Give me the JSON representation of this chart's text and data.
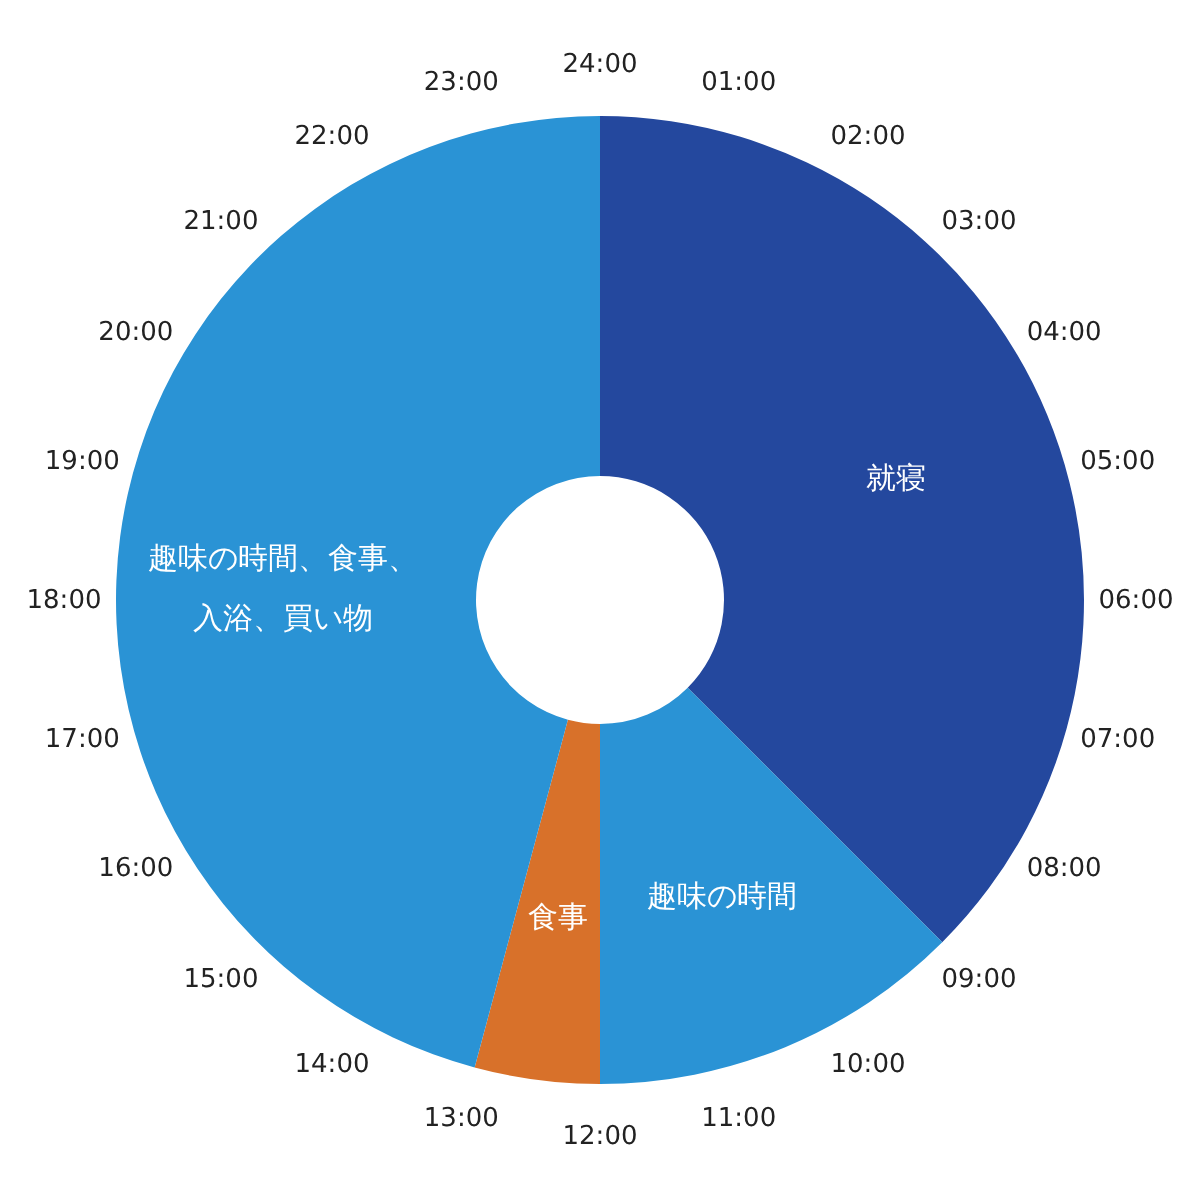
{
  "chart_data": {
    "type": "donut",
    "categories": [
      "就寝",
      "趣味の時間",
      "食事",
      "趣味の時間、食事、入浴、買い物"
    ],
    "values": [
      37.5,
      12.5,
      4.17,
      45.83
    ],
    "colors": [
      "#24489e",
      "#2a93d5",
      "#d8712a",
      "#2a93d5"
    ],
    "annotations": [
      "01:00",
      "02:00",
      "03:00",
      "04:00",
      "05:00",
      "06:00",
      "07:00",
      "08:00",
      "09:00",
      "10:00",
      "11:00",
      "12:00",
      "13:00",
      "14:00",
      "15:00",
      "16:00",
      "17:00",
      "18:00",
      "19:00",
      "20:00",
      "21:00",
      "22:00",
      "23:00",
      "24:00"
    ]
  }
}
